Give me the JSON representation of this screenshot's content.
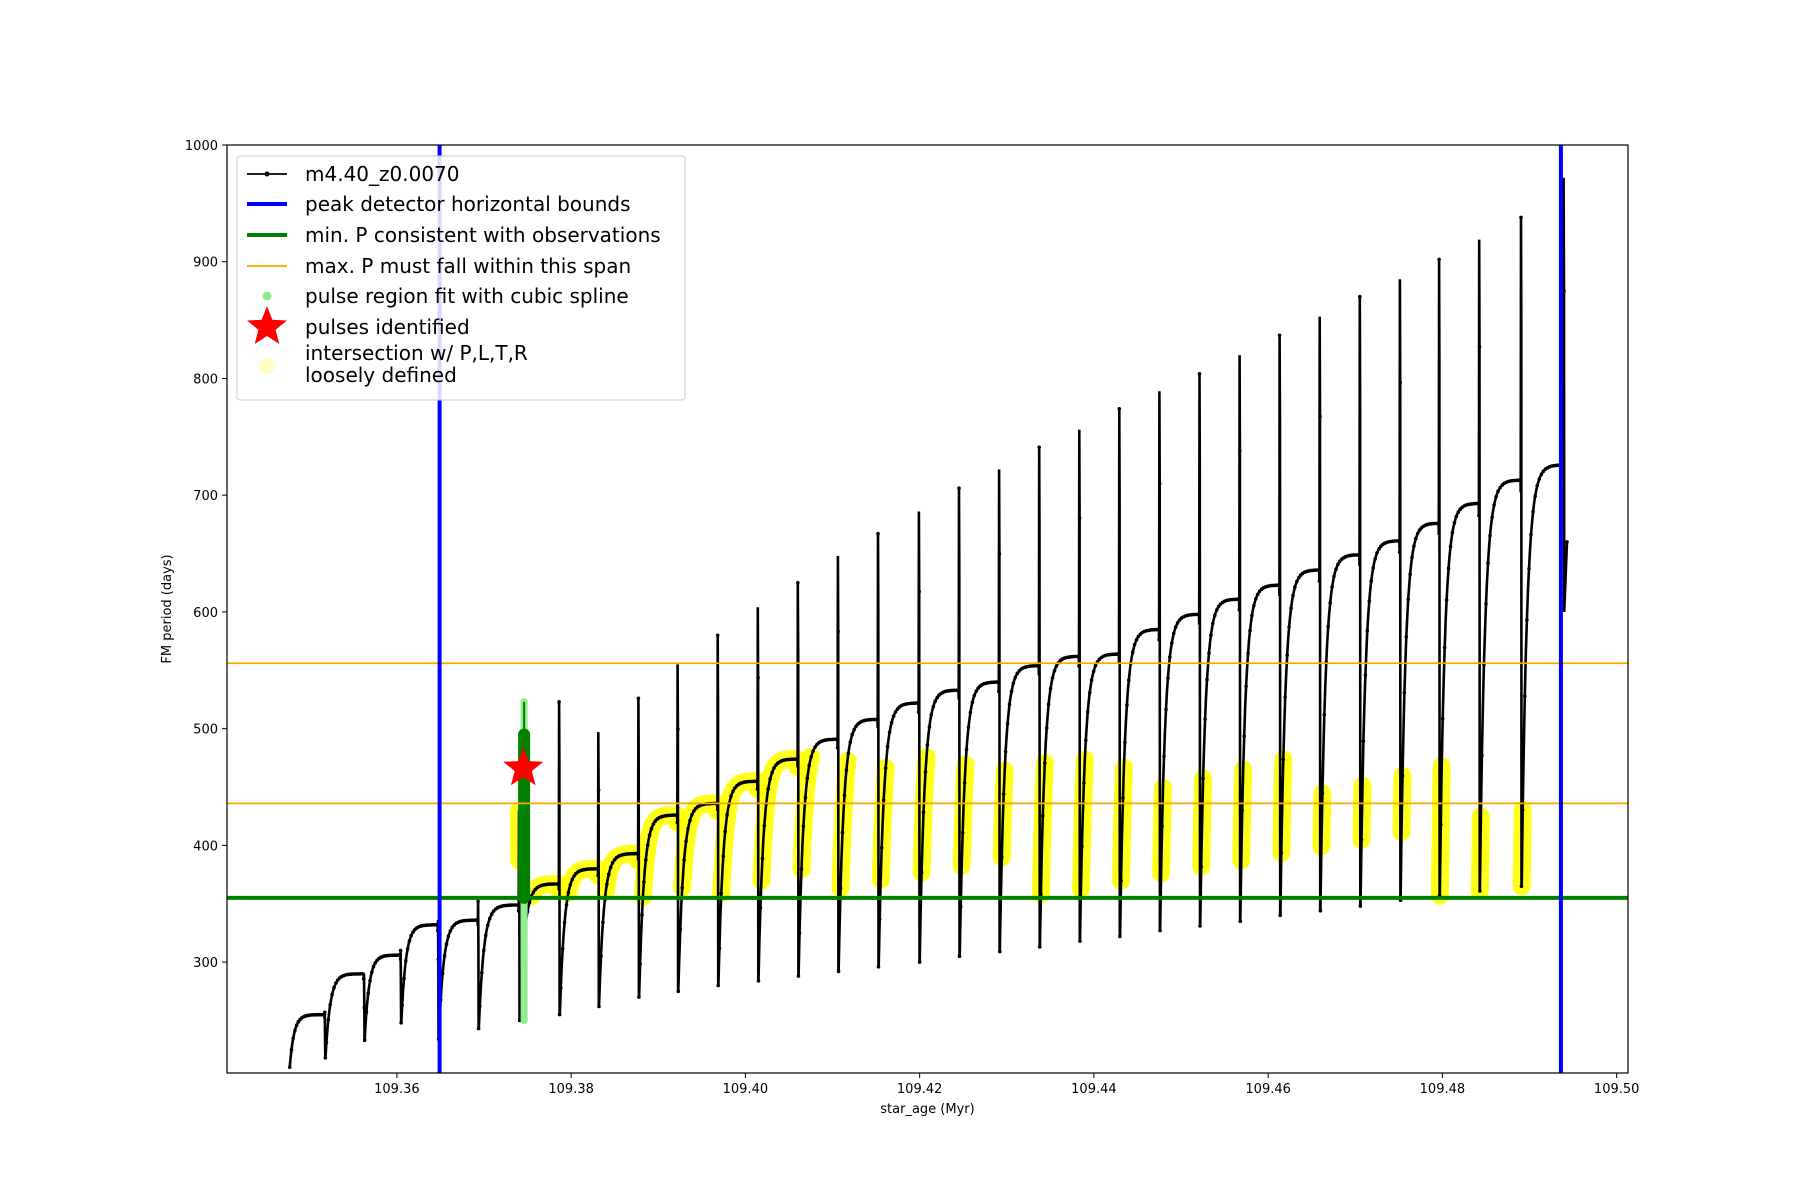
{
  "chart_data": {
    "type": "line",
    "title": "",
    "xlabel": "star_age (Myr)",
    "ylabel": "FM period (days)",
    "xlim": [
      109.3405,
      109.5013
    ],
    "ylim": [
      205,
      1000
    ],
    "xticks": [
      109.36,
      109.38,
      109.4,
      109.42,
      109.44,
      109.46,
      109.48,
      109.5
    ],
    "yticks": [
      300,
      400,
      500,
      600,
      700,
      800,
      900,
      1000
    ],
    "grid": false,
    "legend_position": "top-left",
    "legend": [
      {
        "label": "m4.40_z0.0070",
        "marker": "line-dot",
        "color": "#000000"
      },
      {
        "label": "peak detector horizontal bounds",
        "marker": "line",
        "color": "#0000ff"
      },
      {
        "label": "min. P consistent with observations",
        "marker": "line",
        "color": "#008000"
      },
      {
        "label": "max. P must fall within this span",
        "marker": "line",
        "color": "#ffa500"
      },
      {
        "label": "pulse region fit with cubic spline",
        "marker": "dot",
        "color": "#90ee90"
      },
      {
        "label": "pulses identified",
        "marker": "star",
        "color": "#ff0000"
      },
      {
        "label": "intersection w/ P,L,T,R",
        "label_line2": "loosely defined",
        "marker": "circle",
        "color": "#ffffc0"
      }
    ],
    "reference_lines": {
      "vertical_blue": [
        109.3649,
        109.4936
      ],
      "horizontal_green": 355,
      "horizontal_orange": [
        436,
        556
      ]
    },
    "pulses": {
      "start_ages": [
        109.3477,
        109.3518,
        109.3563,
        109.3605,
        109.3648,
        109.3694,
        109.3741,
        109.3787,
        109.3832,
        109.3878,
        109.3923,
        109.3969,
        109.4015,
        109.4061,
        109.4107,
        109.4153,
        109.42,
        109.4246,
        109.4292,
        109.4338,
        109.4384,
        109.443,
        109.4476,
        109.4522,
        109.4568,
        109.4614,
        109.466,
        109.4706,
        109.4752,
        109.4797,
        109.4843,
        109.4891
      ],
      "dip_min": [
        210,
        218,
        233,
        248,
        234,
        243,
        250,
        255,
        262,
        270,
        275,
        280,
        284,
        288,
        292,
        296,
        300,
        305,
        309,
        313,
        318,
        322,
        327,
        331,
        335,
        340,
        344,
        348,
        353,
        357,
        361,
        365
      ],
      "plateau": [
        255,
        290,
        306,
        332,
        336,
        349,
        367,
        380,
        393,
        426,
        436,
        455,
        474,
        491,
        508,
        522,
        533,
        540,
        554,
        562,
        564,
        585,
        598,
        611,
        623,
        636,
        649,
        661,
        676,
        693,
        713,
        726
      ],
      "spike_top": [
        257,
        290,
        310,
        336,
        352,
        430,
        523,
        497,
        526,
        555,
        580,
        604,
        625,
        648,
        667,
        686,
        706,
        722,
        741,
        756,
        774,
        789,
        804,
        820,
        837,
        853,
        870,
        885,
        902,
        919,
        938,
        972
      ]
    },
    "identified_pulse": {
      "age": 109.3745,
      "period": 466
    },
    "spline_region": {
      "age": 109.3746,
      "period_min": 250,
      "period_max": 523
    }
  }
}
